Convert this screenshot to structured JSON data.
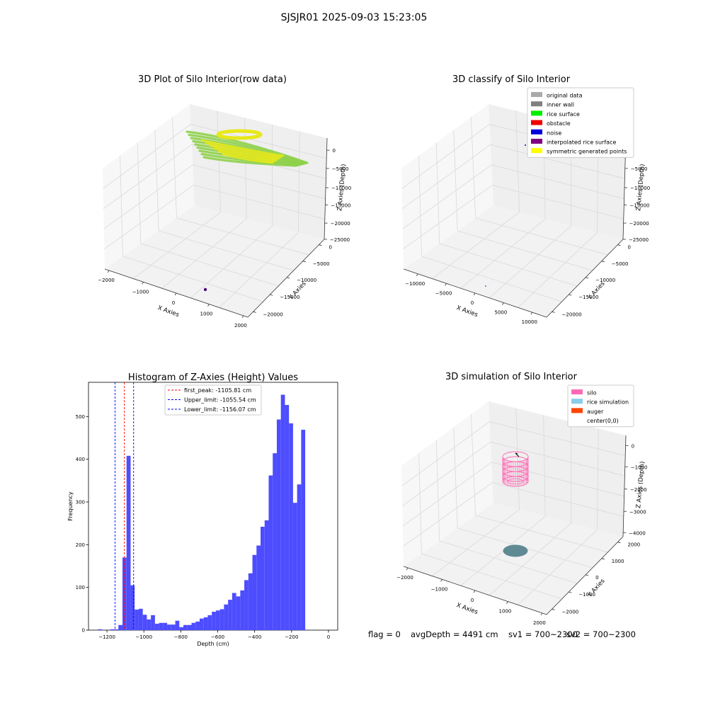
{
  "suptitle": "SJSJR01 2025-09-03 15:23:05",
  "colors": {
    "grid": "#d9d9d9",
    "pane": "#f2f2f2",
    "hist_bar": "#4d4dff",
    "peak_line": "#ff0000",
    "limit_line": "#0000ff",
    "rice_green": "#8ed04a",
    "rice_yellow": "#e8e81a",
    "silo_pink": "#ff69b4",
    "rice_sim": "#5f8a94"
  },
  "chart_data": [
    {
      "type": "scatter",
      "subtype": "3d",
      "title": "3D Plot of Silo Interior(row data)",
      "xlabel": "X Axies",
      "ylabel": "Y Axies",
      "zlabel": "Z Axies (Depth)",
      "xticks": [
        "−2000",
        "−1000",
        "0",
        "1000",
        "2000"
      ],
      "yticks": [
        "0",
        "−5000",
        "−10000",
        "−15000",
        "−20000"
      ],
      "zticks": [
        "0",
        "−5000",
        "−10000",
        "−15000",
        "−20000",
        "−25000"
      ],
      "series": [
        {
          "color": "rice_green",
          "points": "dense ring/band near depth 0"
        },
        {
          "color": "rice_yellow",
          "points": "dense ring/band near depth 0"
        }
      ]
    },
    {
      "type": "scatter",
      "subtype": "3d",
      "title": "3D classify of Silo Interior",
      "xlabel": "X Axies",
      "ylabel": "Y Axies",
      "zlabel": "Z Axies (Depth)",
      "xticks": [
        "−10000",
        "−5000",
        "0",
        "5000",
        "10000"
      ],
      "yticks": [
        "0",
        "−5000",
        "−10000",
        "−15000",
        "−20000"
      ],
      "zticks": [
        "0",
        "−5000",
        "−10000",
        "−15000",
        "−20000",
        "−25000"
      ],
      "legend": {
        "placement": "top-right",
        "entries": [
          {
            "label": "original data",
            "color": "#aaaaaa"
          },
          {
            "label": "inner wall",
            "color": "#808080"
          },
          {
            "label": "rice surface",
            "color": "#00ee00"
          },
          {
            "label": "obstacle",
            "color": "#ee0000"
          },
          {
            "label": "noise",
            "color": "#0000dd"
          },
          {
            "label": "interpolated rice surface",
            "color": "#800080"
          },
          {
            "label": "symmetric generated points",
            "color": "#ffff00"
          }
        ]
      }
    },
    {
      "type": "bar",
      "subtype": "histogram",
      "title": "Histogram of Z-Axies (Height) Values",
      "xlabel": "Depth (cm)",
      "ylabel": "Frequency",
      "xlim": [
        -1300,
        50
      ],
      "ylim": [
        0,
        580
      ],
      "xticks": [
        -1200,
        -1000,
        -800,
        -600,
        -400,
        -200,
        0
      ],
      "xtick_labels": [
        "−1200",
        "−1000",
        "−800",
        "−600",
        "−400",
        "−200",
        "0"
      ],
      "yticks": [
        0,
        100,
        200,
        300,
        400,
        500
      ],
      "bin_start": -1270,
      "bin_width": 22,
      "values": [
        0,
        2,
        0,
        0,
        2,
        2,
        12,
        170,
        408,
        105,
        48,
        50,
        36,
        25,
        35,
        15,
        17,
        17,
        13,
        13,
        22,
        7,
        12,
        12,
        17,
        20,
        27,
        30,
        35,
        43,
        46,
        49,
        60,
        71,
        87,
        79,
        93,
        117,
        133,
        176,
        198,
        242,
        257,
        362,
        414,
        493,
        551,
        527,
        484,
        298,
        341,
        469
      ],
      "vlines": [
        {
          "x": -1105.81,
          "style": "peak"
        },
        {
          "x": -1055.54,
          "style": "limit"
        },
        {
          "x": -1156.07,
          "style": "limit"
        }
      ],
      "legend": {
        "placement": "top-center",
        "entries": [
          {
            "label": "first_peak: -1105.81 cm",
            "color": "#ff0000"
          },
          {
            "label": "Upper_limit: -1055.54 cm",
            "color": "#0000ff"
          },
          {
            "label": "Lower_limit: -1156.07 cm",
            "color": "#0000ff"
          }
        ]
      }
    },
    {
      "type": "scatter",
      "subtype": "3d",
      "title": "3D simulation of Silo Interior",
      "xlabel": "X Axies",
      "ylabel": "Y Axies",
      "zlabel": "Z Axies (Depth)",
      "xticks": [
        "−2000",
        "−1000",
        "0",
        "1000",
        "2000"
      ],
      "yticks": [
        "2000",
        "1000",
        "0",
        "−1000",
        "−2000"
      ],
      "zticks": [
        "0",
        "−1000",
        "−2000",
        "−3000",
        "−4000"
      ],
      "legend": {
        "placement": "top-right",
        "entries": [
          {
            "label": "silo",
            "color": "#ff69b4"
          },
          {
            "label": "rice simulation",
            "color": "#87ceeb"
          },
          {
            "label": "auger",
            "color": "#ff4500"
          },
          {
            "label": "center(0,0)",
            "color": ""
          }
        ]
      }
    }
  ],
  "footer": {
    "flag": "flag = 0",
    "avgDepth": "avgDepth = 4491 cm",
    "sv1": "sv1 = 700~2300",
    "sv2": "sv2 = 700~2300"
  }
}
